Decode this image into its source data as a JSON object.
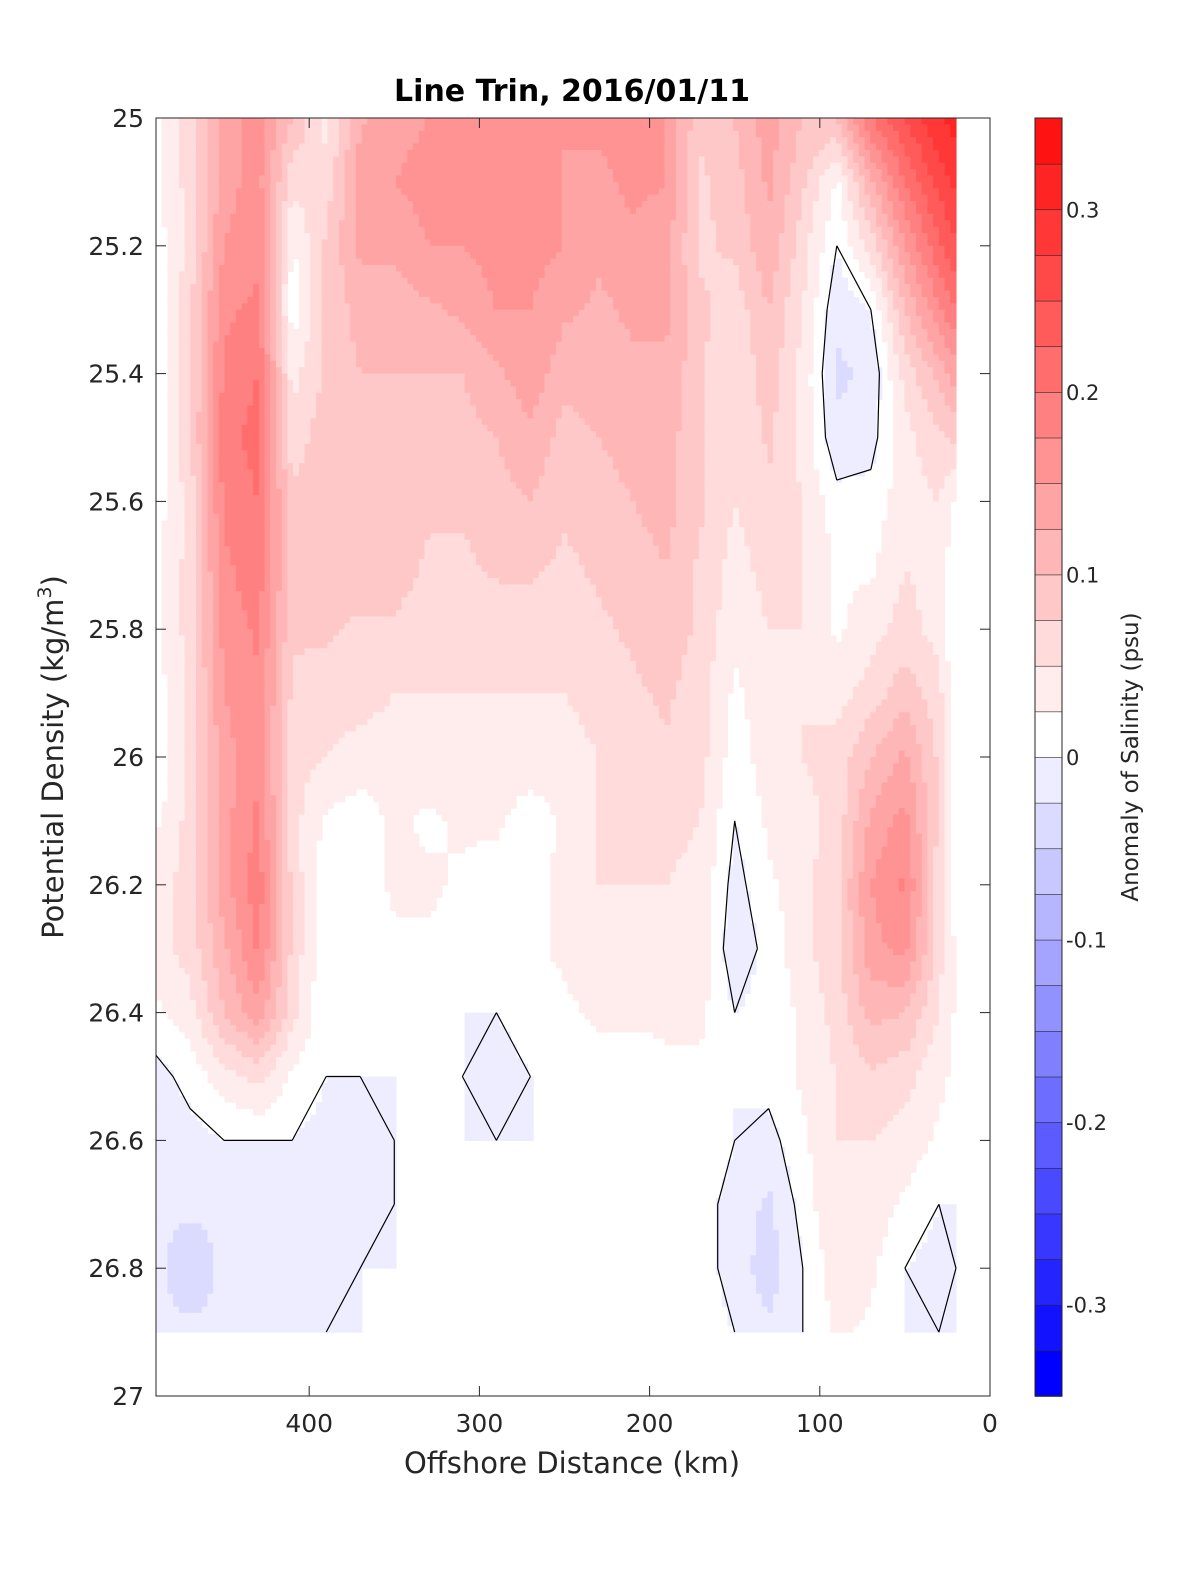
{
  "chart_data": {
    "type": "heatmap",
    "title": "Line Trin, 2016/01/11",
    "xlabel": "Offshore Distance (km)",
    "ylabel_main": "Potential Density (kg/m",
    "ylabel_sup": "3",
    "ylabel_close": ")",
    "xlim": [
      490,
      0
    ],
    "x_reversed": true,
    "ylim": [
      27,
      25
    ],
    "y_reversed": true,
    "x_ticks": [
      400,
      300,
      200,
      100,
      0
    ],
    "x_tick_labels": [
      "400",
      "300",
      "200",
      "100",
      "0"
    ],
    "y_ticks": [
      25,
      25.2,
      25.4,
      25.6,
      25.8,
      26,
      26.2,
      26.4,
      26.6,
      26.8,
      27
    ],
    "y_tick_labels": [
      "25",
      "25.2",
      "25.4",
      "25.6",
      "25.8",
      "26",
      "26.2",
      "26.4",
      "26.6",
      "26.8",
      "27"
    ],
    "colorbar": {
      "label": "Anomaly of Salinity (psu)",
      "range": [
        -0.35,
        0.35
      ],
      "levels_step": 0.025,
      "ticks": [
        0.3,
        0.2,
        0.1,
        0,
        -0.1,
        -0.2,
        -0.3
      ],
      "tick_labels": [
        "0.3",
        "0.2",
        "0.1",
        "0",
        "-0.1",
        "-0.2",
        "-0.3"
      ],
      "positive_color": "#ff0000",
      "negative_color": "#0000ff",
      "zero_color": "#ffffff"
    },
    "data_extent": {
      "x": [
        490,
        20
      ],
      "y": [
        25,
        26.9
      ]
    },
    "grid": false,
    "legend": "none",
    "x": [
      490,
      470,
      450,
      430,
      410,
      390,
      370,
      350,
      330,
      310,
      290,
      270,
      250,
      230,
      210,
      190,
      170,
      150,
      130,
      110,
      90,
      70,
      50,
      30,
      20
    ],
    "y": [
      25.0,
      25.1,
      25.2,
      25.3,
      25.4,
      25.5,
      25.6,
      25.7,
      25.8,
      25.9,
      26.0,
      26.1,
      26.2,
      26.3,
      26.4,
      26.5,
      26.6,
      26.7,
      26.8,
      26.9
    ],
    "z": [
      [
        0.02,
        0.06,
        0.14,
        0.16,
        0.1,
        0.04,
        0.12,
        0.14,
        0.15,
        0.16,
        0.17,
        0.16,
        0.15,
        0.16,
        0.17,
        0.15,
        0.08,
        0.1,
        0.14,
        0.1,
        0.1,
        0.2,
        0.25,
        0.3,
        0.31
      ],
      [
        0.02,
        0.06,
        0.14,
        0.16,
        0.06,
        0.06,
        0.14,
        0.15,
        0.16,
        0.17,
        0.17,
        0.17,
        0.15,
        0.14,
        0.16,
        0.15,
        0.07,
        0.09,
        0.13,
        0.08,
        0.02,
        0.12,
        0.2,
        0.26,
        0.28
      ],
      [
        0.01,
        0.06,
        0.15,
        0.17,
        0.02,
        0.08,
        0.13,
        0.13,
        0.15,
        0.15,
        0.16,
        0.16,
        0.15,
        0.13,
        0.14,
        0.13,
        0.07,
        0.08,
        0.12,
        0.06,
        0.0,
        0.06,
        0.15,
        0.22,
        0.25
      ],
      [
        0.0,
        0.07,
        0.17,
        0.18,
        0.01,
        0.08,
        0.11,
        0.11,
        0.12,
        0.13,
        0.15,
        0.15,
        0.13,
        0.12,
        0.13,
        0.13,
        0.08,
        0.06,
        0.1,
        0.05,
        -0.02,
        0.0,
        0.1,
        0.17,
        0.2
      ],
      [
        0.0,
        0.07,
        0.18,
        0.2,
        0.04,
        0.08,
        0.1,
        0.1,
        0.1,
        0.1,
        0.12,
        0.14,
        0.11,
        0.11,
        0.12,
        0.12,
        0.08,
        0.05,
        0.09,
        0.04,
        -0.03,
        -0.02,
        0.06,
        0.11,
        0.14
      ],
      [
        0.01,
        0.07,
        0.19,
        0.21,
        0.06,
        0.09,
        0.09,
        0.1,
        0.09,
        0.09,
        0.1,
        0.12,
        0.09,
        0.1,
        0.11,
        0.11,
        0.08,
        0.05,
        0.08,
        0.04,
        -0.02,
        -0.01,
        0.04,
        0.07,
        0.08
      ],
      [
        0.01,
        0.06,
        0.18,
        0.2,
        0.08,
        0.1,
        0.1,
        0.1,
        0.08,
        0.08,
        0.09,
        0.1,
        0.08,
        0.09,
        0.1,
        0.11,
        0.08,
        0.05,
        0.07,
        0.05,
        0.01,
        0.01,
        0.04,
        0.05,
        0.02
      ],
      [
        0.02,
        0.06,
        0.17,
        0.19,
        0.09,
        0.09,
        0.09,
        0.09,
        0.07,
        0.07,
        0.08,
        0.08,
        0.07,
        0.08,
        0.09,
        0.1,
        0.07,
        0.04,
        0.06,
        0.05,
        0.02,
        0.02,
        0.05,
        0.04,
        0.0
      ],
      [
        0.02,
        0.06,
        0.16,
        0.18,
        0.08,
        0.08,
        0.07,
        0.07,
        0.06,
        0.06,
        0.06,
        0.06,
        0.06,
        0.07,
        0.08,
        0.09,
        0.07,
        0.03,
        0.05,
        0.05,
        0.02,
        0.04,
        0.06,
        0.04,
        0.0
      ],
      [
        0.01,
        0.06,
        0.15,
        0.17,
        0.07,
        0.06,
        0.06,
        0.05,
        0.05,
        0.05,
        0.05,
        0.05,
        0.05,
        0.06,
        0.07,
        0.08,
        0.06,
        0.02,
        0.04,
        0.05,
        0.04,
        0.06,
        0.09,
        0.06,
        0.0
      ],
      [
        0.0,
        0.06,
        0.14,
        0.17,
        0.06,
        0.05,
        0.04,
        0.04,
        0.04,
        0.04,
        0.04,
        0.04,
        0.04,
        0.05,
        0.06,
        0.07,
        0.06,
        0.01,
        0.04,
        0.05,
        0.06,
        0.1,
        0.13,
        0.07,
        0.0
      ],
      [
        0.02,
        0.06,
        0.14,
        0.18,
        0.06,
        0.02,
        0.01,
        0.03,
        0.02,
        0.03,
        0.03,
        0.01,
        0.03,
        0.05,
        0.06,
        0.06,
        0.05,
        0.0,
        0.03,
        0.04,
        0.06,
        0.13,
        0.16,
        0.07,
        0.01
      ],
      [
        0.04,
        0.06,
        0.14,
        0.19,
        0.07,
        0.0,
        0.01,
        0.03,
        0.03,
        0.02,
        0.01,
        0.02,
        0.03,
        0.05,
        0.05,
        0.05,
        0.04,
        -0.01,
        0.02,
        0.04,
        0.07,
        0.15,
        0.18,
        0.06,
        0.01
      ],
      [
        0.04,
        0.06,
        0.12,
        0.18,
        0.07,
        0.0,
        0.0,
        0.02,
        0.02,
        0.01,
        0.0,
        0.02,
        0.03,
        0.04,
        0.04,
        0.04,
        0.04,
        -0.02,
        0.01,
        0.04,
        0.07,
        0.14,
        0.16,
        0.06,
        0.02
      ],
      [
        0.02,
        0.04,
        0.1,
        0.14,
        0.06,
        0.0,
        0.0,
        0.01,
        0.01,
        0.0,
        0.0,
        0.01,
        0.02,
        0.03,
        0.03,
        0.03,
        0.03,
        0.0,
        0.01,
        0.03,
        0.06,
        0.11,
        0.1,
        0.05,
        0.02
      ],
      [
        -0.01,
        0.01,
        0.04,
        0.06,
        0.02,
        0.0,
        0.0,
        0.0,
        0.0,
        0.0,
        -0.01,
        0.0,
        0.0,
        0.01,
        0.01,
        0.02,
        0.02,
        0.0,
        0.01,
        0.03,
        0.05,
        0.07,
        0.06,
        0.03,
        0.02
      ],
      [
        -0.02,
        -0.01,
        0.0,
        0.0,
        0.0,
        -0.01,
        -0.01,
        0.0,
        0.0,
        0.0,
        0.0,
        0.0,
        0.0,
        0.0,
        0.0,
        0.01,
        0.02,
        0.0,
        -0.01,
        0.02,
        0.05,
        0.05,
        0.04,
        0.02,
        0.02
      ],
      [
        -0.02,
        -0.02,
        -0.02,
        -0.01,
        -0.01,
        -0.02,
        -0.01,
        0.0,
        0.0,
        0.0,
        0.0,
        0.0,
        0.0,
        0.0,
        0.0,
        0.0,
        0.01,
        -0.01,
        -0.03,
        0.01,
        0.05,
        0.04,
        0.02,
        0.0,
        0.0
      ],
      [
        -0.02,
        -0.04,
        -0.02,
        -0.02,
        -0.01,
        -0.01,
        0.0,
        0.0,
        0.0,
        0.0,
        0.0,
        0.0,
        0.0,
        0.0,
        0.0,
        0.0,
        0.01,
        -0.01,
        -0.04,
        0.0,
        0.04,
        0.03,
        0.0,
        -0.01,
        0.0
      ],
      [
        -0.02,
        -0.02,
        -0.02,
        -0.02,
        -0.01,
        0.0,
        0.0,
        0.0,
        0.01,
        0.01,
        0.0,
        0.0,
        0.0,
        0.0,
        0.0,
        0.0,
        0.01,
        0.0,
        -0.02,
        0.0,
        0.03,
        0.02,
        0.0,
        0.0,
        0.0
      ]
    ]
  }
}
